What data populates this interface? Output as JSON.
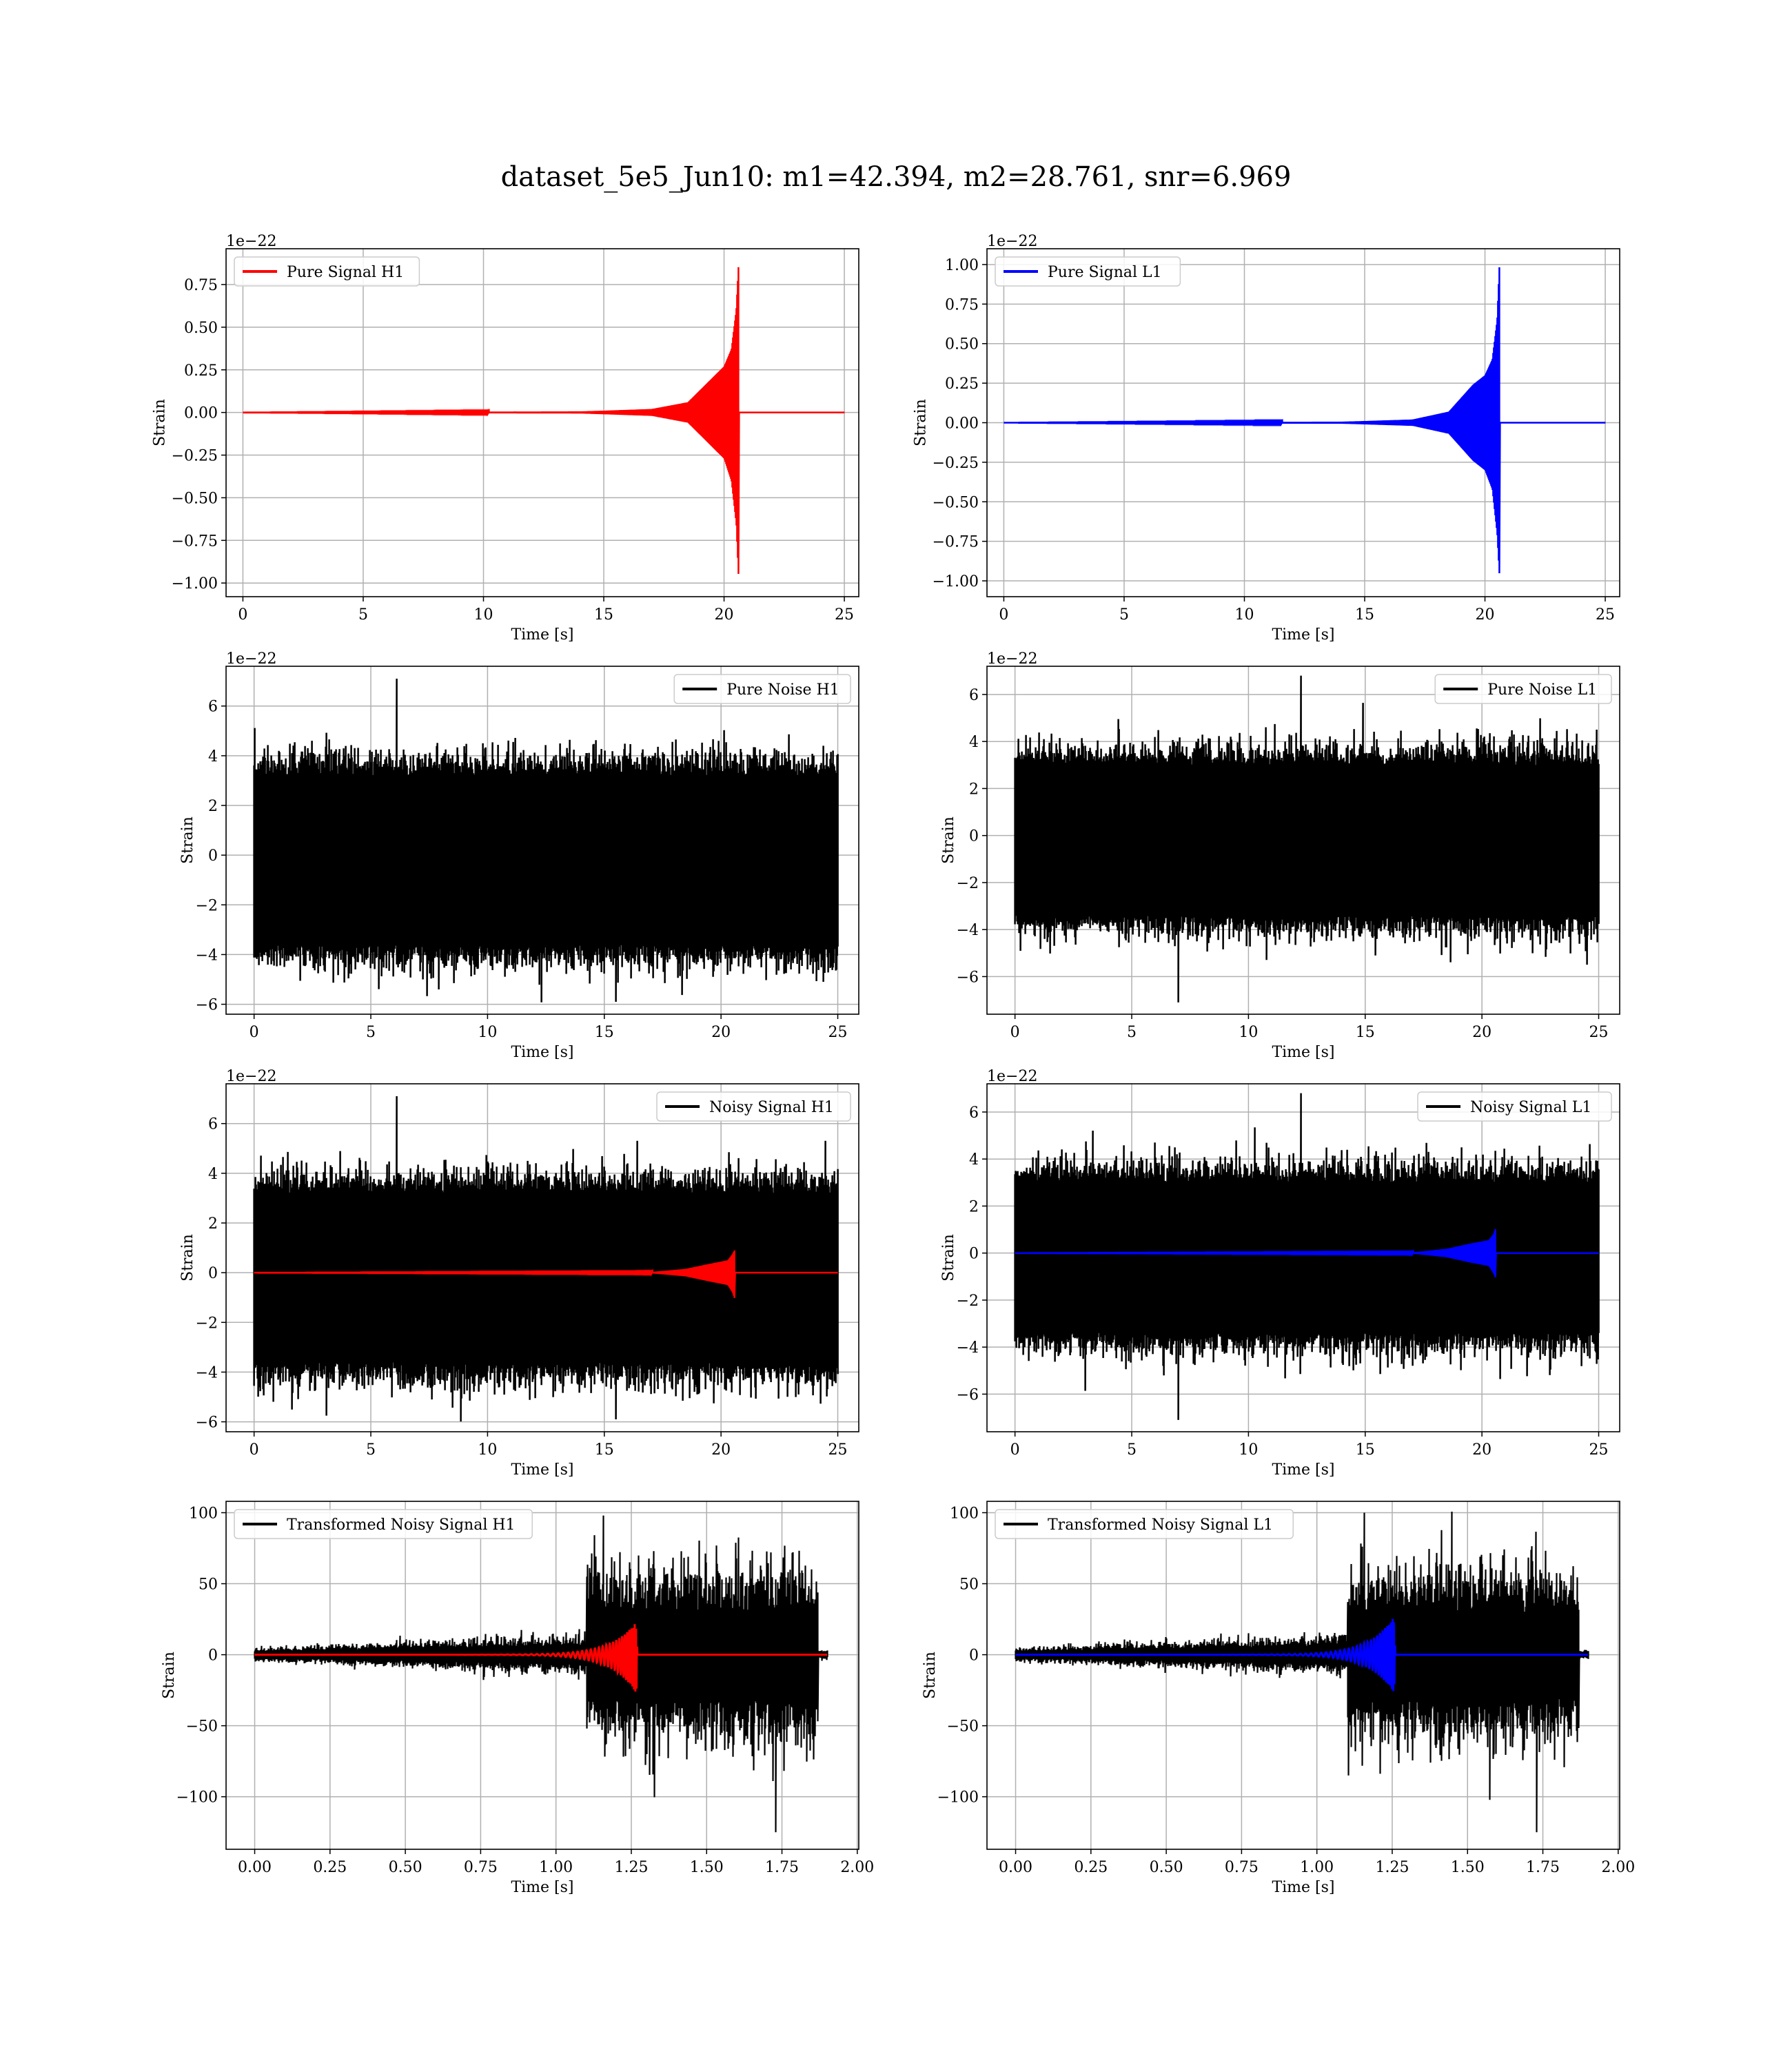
{
  "figure": {
    "title": "dataset_5e5_Jun10: m1=42.394, m2=28.761, snr=6.969"
  },
  "colors": {
    "h1": "#ff0000",
    "l1": "#0000ff",
    "noise": "#000000",
    "grid": "#b0b0b0"
  },
  "chart_data": [
    {
      "id": "pure-signal-h1",
      "type": "line",
      "xlabel": "Time [s]",
      "ylabel": "Strain",
      "offset_text": "1e−22",
      "xlim": [
        -0.7,
        25.6
      ],
      "ylim": [
        -1.08,
        0.96
      ],
      "xticks": [
        0,
        5,
        10,
        15,
        20,
        25
      ],
      "xtick_labels": [
        "0",
        "5",
        "10",
        "15",
        "20",
        "25"
      ],
      "yticks": [
        -1.0,
        -0.75,
        -0.5,
        -0.25,
        0.0,
        0.25,
        0.5,
        0.75
      ],
      "ytick_labels": [
        "−1.00",
        "−0.75",
        "−0.50",
        "−0.25",
        "0.00",
        "0.25",
        "0.50",
        "0.75"
      ],
      "legend": {
        "loc": "upper-left",
        "entries": [
          "Pure Signal H1"
        ]
      },
      "series": [
        {
          "name": "Pure Signal H1",
          "color": "#ff0000",
          "kind": "chirp",
          "x": [
            0,
            25
          ],
          "merger": 20.6,
          "envelope_x": [
            0,
            14,
            17,
            18.5,
            19.5,
            20.0,
            20.3,
            20.5,
            20.6
          ],
          "envelope_top": [
            0,
            0.005,
            0.02,
            0.06,
            0.2,
            0.27,
            0.37,
            0.6,
            0.88
          ],
          "envelope_bottom": [
            0,
            -0.005,
            -0.02,
            -0.06,
            -0.2,
            -0.27,
            -0.4,
            -0.65,
            -0.98
          ]
        }
      ],
      "grid": true
    },
    {
      "id": "pure-signal-l1",
      "type": "line",
      "xlabel": "Time [s]",
      "ylabel": "Strain",
      "offset_text": "1e−22",
      "xlim": [
        -0.7,
        25.6
      ],
      "ylim": [
        -1.1,
        1.1
      ],
      "xticks": [
        0,
        5,
        10,
        15,
        20,
        25
      ],
      "xtick_labels": [
        "0",
        "5",
        "10",
        "15",
        "20",
        "25"
      ],
      "yticks": [
        -1.0,
        -0.75,
        -0.5,
        -0.25,
        0.0,
        0.25,
        0.5,
        0.75,
        1.0
      ],
      "ytick_labels": [
        "−1.00",
        "−0.75",
        "−0.50",
        "−0.25",
        "0.00",
        "0.25",
        "0.50",
        "0.75",
        "1.00"
      ],
      "legend": {
        "loc": "upper-left",
        "entries": [
          "Pure Signal L1"
        ]
      },
      "series": [
        {
          "name": "Pure Signal L1",
          "color": "#0000ff",
          "kind": "chirp",
          "x": [
            0,
            25
          ],
          "merger": 20.6,
          "envelope_x": [
            0,
            14,
            17,
            18.5,
            19.5,
            20.0,
            20.3,
            20.5,
            20.6
          ],
          "envelope_top": [
            0,
            0.005,
            0.02,
            0.07,
            0.24,
            0.3,
            0.4,
            0.65,
            1.02
          ],
          "envelope_bottom": [
            0,
            -0.005,
            -0.02,
            -0.07,
            -0.24,
            -0.3,
            -0.42,
            -0.7,
            -0.98
          ]
        }
      ],
      "grid": true
    },
    {
      "id": "pure-noise-h1",
      "type": "line",
      "xlabel": "Time [s]",
      "ylabel": "Strain",
      "offset_text": "1e−22",
      "xlim": [
        -1.2,
        25.9
      ],
      "ylim": [
        -6.4,
        7.6
      ],
      "xticks": [
        0,
        5,
        10,
        15,
        20,
        25
      ],
      "xtick_labels": [
        "0",
        "5",
        "10",
        "15",
        "20",
        "25"
      ],
      "yticks": [
        -6,
        -4,
        -2,
        0,
        2,
        4,
        6
      ],
      "ytick_labels": [
        "−6",
        "−4",
        "−2",
        "0",
        "2",
        "4",
        "6"
      ],
      "legend": {
        "loc": "upper-right",
        "entries": [
          "Pure Noise H1"
        ]
      },
      "series": [
        {
          "name": "Pure Noise H1",
          "color": "#000000",
          "kind": "noise",
          "x": [
            0,
            25
          ],
          "band": [
            -3.6,
            3.2
          ],
          "max": 7.1,
          "min": -5.9
        }
      ],
      "grid": true
    },
    {
      "id": "pure-noise-l1",
      "type": "line",
      "xlabel": "Time [s]",
      "ylabel": "Strain",
      "offset_text": "1e−22",
      "xlim": [
        -1.2,
        25.9
      ],
      "ylim": [
        -7.6,
        7.2
      ],
      "xticks": [
        0,
        5,
        10,
        15,
        20,
        25
      ],
      "xtick_labels": [
        "0",
        "5",
        "10",
        "15",
        "20",
        "25"
      ],
      "yticks": [
        -6,
        -4,
        -2,
        0,
        2,
        4,
        6
      ],
      "ytick_labels": [
        "−6",
        "−4",
        "−2",
        "0",
        "2",
        "4",
        "6"
      ],
      "legend": {
        "loc": "upper-right",
        "entries": [
          "Pure Noise L1"
        ]
      },
      "series": [
        {
          "name": "Pure Noise L1",
          "color": "#000000",
          "kind": "noise",
          "x": [
            0,
            25
          ],
          "band": [
            -3.4,
            3.0
          ],
          "max": 6.8,
          "min": -7.1
        }
      ],
      "grid": true
    },
    {
      "id": "noisy-signal-h1",
      "type": "line",
      "xlabel": "Time [s]",
      "ylabel": "Strain",
      "offset_text": "1e−22",
      "xlim": [
        -1.2,
        25.9
      ],
      "ylim": [
        -6.4,
        7.6
      ],
      "xticks": [
        0,
        5,
        10,
        15,
        20,
        25
      ],
      "xtick_labels": [
        "0",
        "5",
        "10",
        "15",
        "20",
        "25"
      ],
      "yticks": [
        -6,
        -4,
        -2,
        0,
        2,
        4,
        6
      ],
      "ytick_labels": [
        "−6",
        "−4",
        "−2",
        "0",
        "2",
        "4",
        "6"
      ],
      "legend": {
        "loc": "upper-right",
        "entries": [
          "Noisy Signal H1"
        ]
      },
      "series": [
        {
          "name": "Noisy Signal H1",
          "color": "#000000",
          "kind": "noise",
          "x": [
            0,
            25
          ],
          "band": [
            -3.6,
            3.2
          ],
          "max": 7.1,
          "min": -5.9
        },
        {
          "name": "",
          "color": "#ff0000",
          "kind": "chirp",
          "x": [
            0,
            25
          ],
          "merger": 20.6,
          "envelope_x": [
            0,
            17,
            18.5,
            19.5,
            20.3,
            20.5,
            20.6
          ],
          "envelope_top": [
            0,
            0.02,
            0.15,
            0.35,
            0.5,
            0.75,
            0.95
          ],
          "envelope_bottom": [
            0,
            -0.02,
            -0.15,
            -0.35,
            -0.5,
            -0.8,
            -1.1
          ]
        }
      ],
      "grid": true
    },
    {
      "id": "noisy-signal-l1",
      "type": "line",
      "xlabel": "Time [s]",
      "ylabel": "Strain",
      "offset_text": "1e−22",
      "xlim": [
        -1.2,
        25.9
      ],
      "ylim": [
        -7.6,
        7.2
      ],
      "xticks": [
        0,
        5,
        10,
        15,
        20,
        25
      ],
      "xtick_labels": [
        "0",
        "5",
        "10",
        "15",
        "20",
        "25"
      ],
      "yticks": [
        -6,
        -4,
        -2,
        0,
        2,
        4,
        6
      ],
      "ytick_labels": [
        "−6",
        "−4",
        "−2",
        "0",
        "2",
        "4",
        "6"
      ],
      "legend": {
        "loc": "upper-right",
        "entries": [
          "Noisy Signal L1"
        ]
      },
      "series": [
        {
          "name": "Noisy Signal L1",
          "color": "#000000",
          "kind": "noise",
          "x": [
            0,
            25
          ],
          "band": [
            -3.4,
            3.0
          ],
          "max": 6.8,
          "min": -7.1
        },
        {
          "name": "",
          "color": "#0000ff",
          "kind": "chirp",
          "x": [
            0,
            25
          ],
          "merger": 20.6,
          "envelope_x": [
            0,
            17,
            18.5,
            19.5,
            20.3,
            20.5,
            20.6
          ],
          "envelope_top": [
            0,
            0.02,
            0.18,
            0.4,
            0.55,
            0.8,
            1.1
          ],
          "envelope_bottom": [
            0,
            -0.02,
            -0.18,
            -0.4,
            -0.55,
            -0.85,
            -1.1
          ]
        }
      ],
      "grid": true
    },
    {
      "id": "transformed-h1",
      "type": "line",
      "xlabel": "Time [s]",
      "ylabel": "Strain",
      "offset_text": "",
      "xlim": [
        -0.095,
        2.005
      ],
      "ylim": [
        -137,
        108
      ],
      "xticks": [
        0,
        0.25,
        0.5,
        0.75,
        1.0,
        1.25,
        1.5,
        1.75,
        2.0
      ],
      "xtick_labels": [
        "0.00",
        "0.25",
        "0.50",
        "0.75",
        "1.00",
        "1.25",
        "1.50",
        "1.75",
        "2.00"
      ],
      "yticks": [
        -100,
        -50,
        0,
        50,
        100
      ],
      "ytick_labels": [
        "−100",
        "−50",
        "0",
        "50",
        "100"
      ],
      "legend": {
        "loc": "upper-left",
        "entries": [
          "Transformed Noisy Signal H1"
        ]
      },
      "series": [
        {
          "name": "Transformed Noisy Signal H1",
          "color": "#000000",
          "kind": "whitened",
          "x": [
            0,
            1.9
          ],
          "low_end": 1.1,
          "low_amp": 12,
          "high_amp": 55,
          "cut": 1.87,
          "max": 98,
          "min": -125
        },
        {
          "name": "",
          "color": "#ff0000",
          "kind": "whitened-chirp",
          "x": [
            0,
            1.9
          ],
          "merger": 1.27,
          "peak": 24,
          "trough": -28
        }
      ],
      "grid": true
    },
    {
      "id": "transformed-l1",
      "type": "line",
      "xlabel": "Time [s]",
      "ylabel": "Strain",
      "offset_text": "",
      "xlim": [
        -0.095,
        2.005
      ],
      "ylim": [
        -137,
        108
      ],
      "xticks": [
        0,
        0.25,
        0.5,
        0.75,
        1.0,
        1.25,
        1.5,
        1.75,
        2.0
      ],
      "xtick_labels": [
        "0.00",
        "0.25",
        "0.50",
        "0.75",
        "1.00",
        "1.25",
        "1.50",
        "1.75",
        "2.00"
      ],
      "yticks": [
        -100,
        -50,
        0,
        50,
        100
      ],
      "ytick_labels": [
        "−100",
        "−50",
        "0",
        "50",
        "100"
      ],
      "legend": {
        "loc": "upper-left",
        "entries": [
          "Transformed Noisy Signal L1"
        ]
      },
      "series": [
        {
          "name": "Transformed Noisy Signal L1",
          "color": "#000000",
          "kind": "whitened",
          "x": [
            0,
            1.9
          ],
          "low_end": 1.1,
          "low_amp": 12,
          "high_amp": 55,
          "cut": 1.87,
          "max": 100,
          "min": -125
        },
        {
          "name": "",
          "color": "#0000ff",
          "kind": "whitened-chirp",
          "x": [
            0,
            1.9
          ],
          "merger": 1.26,
          "peak": 28,
          "trough": -28
        }
      ],
      "grid": true
    }
  ]
}
